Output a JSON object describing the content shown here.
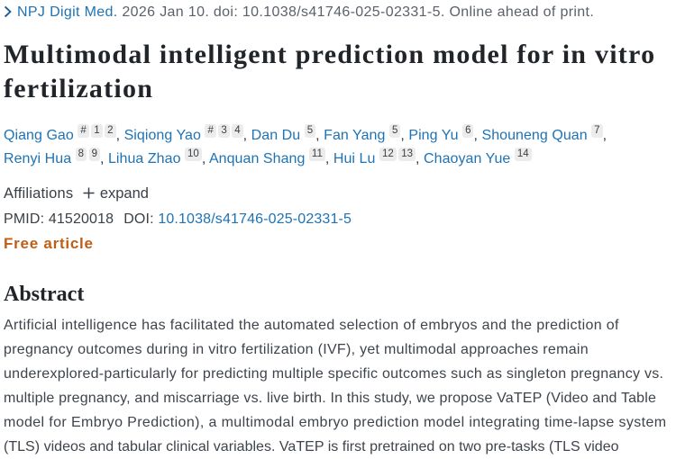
{
  "citation_bar": {
    "journal_link": "NPJ Digit Med.",
    "citation_rest": " 2026 Jan 10. doi: 10.1038/s41746-025-02331-5. Online ahead of print."
  },
  "title": "Multimodal intelligent prediction model for in vitro fertilization",
  "authors": [
    {
      "name": "Qiang Gao",
      "sups": [
        "#",
        "1",
        "2"
      ]
    },
    {
      "name": "Siqiong Yao",
      "sups": [
        "#",
        "3",
        "4"
      ]
    },
    {
      "name": "Dan Du",
      "sups": [
        "5"
      ]
    },
    {
      "name": "Fan Yang",
      "sups": [
        "5"
      ]
    },
    {
      "name": "Ping Yu",
      "sups": [
        "6"
      ]
    },
    {
      "name": "Shouneng Quan",
      "sups": [
        "7"
      ]
    },
    {
      "name": "Renyi Hua",
      "sups": [
        "8",
        "9"
      ]
    },
    {
      "name": "Lihua Zhao",
      "sups": [
        "10"
      ]
    },
    {
      "name": "Anquan Shang",
      "sups": [
        "11"
      ]
    },
    {
      "name": "Hui Lu",
      "sups": [
        "12",
        "13"
      ]
    },
    {
      "name": "Chaoyan Yue",
      "sups": [
        "14"
      ]
    }
  ],
  "affiliations": {
    "label": "Affiliations",
    "expand_label": "expand"
  },
  "identifiers": {
    "pmid_label": "PMID:",
    "pmid_value": "41520018",
    "doi_label": "DOI:",
    "doi_link": "10.1038/s41746-025-02331-5"
  },
  "free_article_label": "Free article",
  "abstract": {
    "heading": "Abstract",
    "lines": [
      "Artificial intelligence has facilitated the automated selection of embryos and the prediction of",
      "pregnancy outcomes during in vitro fertilization (IVF), yet multimodal approaches remain",
      "underexplored-particularly for predicting multiple specific outcomes such as singleton pregnancy vs.",
      "multiple pregnancy, and miscarriage vs. live birth. In this study, we propose VaTEP (Video and Table",
      "model for Embryo Prediction), a multimodal embryo prediction model integrating time-lapse system",
      "(TLS) videos and tabular clinical variables. VaTEP is first pretrained on two pre-tasks (TLS video"
    ]
  },
  "colors": {
    "link_blue": "#1e73b5",
    "citation_gray": "#5b616b",
    "free_article_orange": "#bd5f16",
    "badge_background": "#ececec",
    "body_text": "#343a40"
  }
}
